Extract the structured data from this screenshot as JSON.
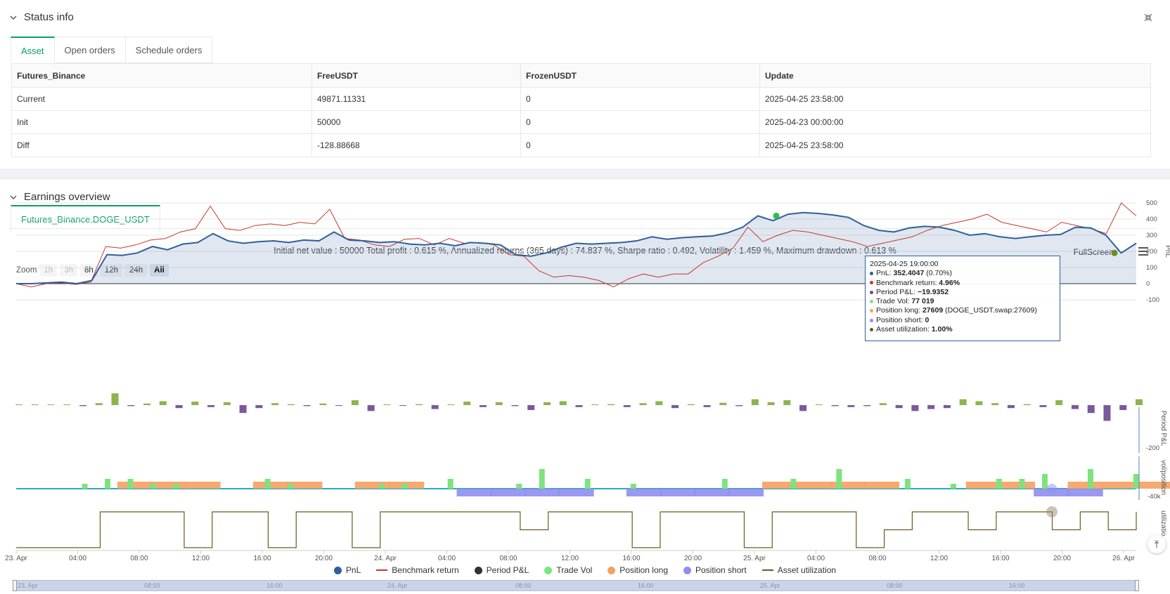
{
  "status": {
    "title": "Status info",
    "tabs": [
      "Asset",
      "Open orders",
      "Schedule orders"
    ],
    "table": {
      "headers": [
        "Futures_Binance",
        "FreeUSDT",
        "FrozenUSDT",
        "Update"
      ],
      "rows": [
        [
          "Current",
          "49871.11331",
          "0",
          "2025-04-25 23:58:00"
        ],
        [
          "Init",
          "50000",
          "0",
          "2025-04-23 00:00:00"
        ],
        [
          "Diff",
          "-128.88668",
          "0",
          "2025-04-25 23:58:00"
        ]
      ]
    }
  },
  "earnings": {
    "title": "Earnings overview",
    "tab": "Futures_Binance.DOGE_USDT",
    "summary": "Initial net value : 50000 Total profit : 0.615 %, Annualized returns (365 days) : 74.837 %, Sharpe ratio : 0.492, Volatility : 1.459 %, Maximum drawdown : 0.613 %",
    "fullscreen": "FullScreen",
    "zoom": {
      "label": "Zoom",
      "buttons": [
        "1h",
        "3h",
        "8h",
        "12h",
        "24h",
        "All"
      ]
    },
    "tooltip": {
      "time": "2025-04-25 19:00:00",
      "pnl_label": "PnL:",
      "pnl_value": "352.4047",
      "pnl_extra": "(0.70%)",
      "bench_label": "Benchmark return:",
      "bench_value": "4.96%",
      "period_label": "Period P&L:",
      "period_value": "−19.9352",
      "vol_label": "Trade Vol:",
      "vol_value": "77 019",
      "long_label": "Position long:",
      "long_value": "27609",
      "long_extra": "(DOGE_USDT.swap:27609)",
      "short_label": "Position short:",
      "short_value": "0",
      "util_label": "Asset utilization:",
      "util_value": "1.00%"
    },
    "legend": [
      "PnL",
      "Benchmark return",
      "Period P&L",
      "Trade Vol",
      "Position long",
      "Position short",
      "Asset utilization"
    ],
    "navigator_labels": [
      "23. Apr",
      "08:00",
      "16:00",
      "24. Apr",
      "08:00",
      "16:00",
      "25. Apr",
      "08:00",
      "16:00"
    ]
  },
  "chart_data": {
    "type": "line",
    "x_ticks": [
      "23. Apr",
      "04:00",
      "08:00",
      "12:00",
      "16:00",
      "20:00",
      "24. Apr",
      "04:00",
      "08:00",
      "12:00",
      "16:00",
      "20:00",
      "25. Apr",
      "04:00",
      "08:00",
      "12:00",
      "16:00",
      "20:00",
      "26. Apr"
    ],
    "pnl_axis": {
      "label": "PnL",
      "ticks": [
        500,
        400,
        300,
        200,
        100,
        0,
        -100
      ]
    },
    "period_axis": {
      "label": "Period P&L",
      "ticks": [
        -200
      ]
    },
    "vol_axis": {
      "label": "vol/position",
      "ticks": [
        "-40k"
      ]
    },
    "util_axis": {
      "label": "utilizatio..",
      "ticks": [
        0
      ]
    },
    "series": [
      {
        "name": "PnL",
        "values": [
          0,
          0,
          5,
          10,
          0,
          20,
          180,
          175,
          190,
          230,
          210,
          245,
          255,
          310,
          265,
          250,
          260,
          265,
          255,
          270,
          265,
          320,
          270,
          265,
          255,
          260,
          245,
          240,
          250,
          235,
          255,
          250,
          240,
          180,
          170,
          190,
          225,
          250,
          245,
          250,
          255,
          265,
          290,
          275,
          285,
          290,
          295,
          315,
          350,
          420,
          390,
          430,
          440,
          435,
          425,
          410,
          360,
          330,
          320,
          345,
          355,
          350,
          330,
          300,
          310,
          290,
          280,
          290,
          300,
          305,
          350,
          345,
          300,
          190,
          250
        ]
      },
      {
        "name": "Benchmark return",
        "values": [
          0,
          -20,
          0,
          5,
          -5,
          10,
          230,
          220,
          240,
          270,
          280,
          320,
          340,
          480,
          340,
          330,
          360,
          370,
          360,
          380,
          370,
          460,
          280,
          270,
          240,
          230,
          275,
          280,
          240,
          280,
          250,
          255,
          240,
          180,
          170,
          80,
          40,
          50,
          40,
          20,
          -20,
          30,
          60,
          40,
          60,
          60,
          130,
          170,
          220,
          350,
          260,
          300,
          330,
          320,
          300,
          280,
          260,
          230,
          250,
          270,
          290,
          330,
          360,
          380,
          400,
          430,
          380,
          360,
          340,
          320,
          380,
          360,
          340,
          310,
          500,
          420
        ]
      },
      {
        "name": "Period P&L",
        "values": [
          0,
          0,
          2,
          0,
          -5,
          10,
          60,
          -5,
          8,
          20,
          -15,
          18,
          -10,
          15,
          -40,
          -15,
          10,
          5,
          -5,
          8,
          -3,
          25,
          -30,
          0,
          -2,
          5,
          -20,
          0,
          18,
          -10,
          15,
          -5,
          -25,
          15,
          20,
          -10,
          0,
          5,
          -10,
          10,
          20,
          -15,
          5,
          -10,
          12,
          -5,
          30,
          15,
          25,
          -30,
          0,
          -5,
          -10,
          -5,
          10,
          -15,
          -30,
          -20,
          -15,
          30,
          20,
          10,
          -15,
          5,
          -10,
          25,
          -20,
          -40,
          -80,
          -25,
          30
        ]
      },
      {
        "name": "Trade Vol",
        "values": [
          0,
          0,
          0,
          5,
          10,
          10,
          5,
          5,
          0,
          0,
          0,
          10,
          5,
          0,
          0,
          0,
          5,
          5,
          0,
          10,
          0,
          0,
          5,
          20,
          0,
          10,
          0,
          5,
          0,
          0,
          0,
          10,
          0,
          0,
          10,
          0,
          20,
          0,
          0,
          10,
          0,
          5,
          0,
          10,
          10,
          15,
          0,
          20,
          0,
          15
        ]
      },
      {
        "name": "Position long",
        "values": [
          0,
          0,
          0,
          27609,
          27609,
          27609,
          0,
          27609,
          27609,
          0,
          27609,
          27609,
          0,
          0,
          0,
          0,
          0,
          0,
          0,
          0,
          0,
          0,
          27609,
          27609,
          27609,
          27609,
          0,
          0,
          27609,
          27609,
          0,
          27609,
          27609,
          27609
        ]
      },
      {
        "name": "Position short",
        "values": [
          0,
          0,
          0,
          0,
          0,
          0,
          0,
          0,
          0,
          0,
          0,
          0,
          0,
          -27609,
          -27609,
          -27609,
          -27609,
          0,
          -27609,
          -27609,
          -27609,
          -27609,
          0,
          0,
          0,
          0,
          0,
          0,
          0,
          0,
          -27609,
          -27609,
          0,
          0
        ]
      },
      {
        "name": "Asset utilization",
        "values": [
          0,
          0,
          0,
          1,
          1,
          1,
          0,
          1,
          1,
          0,
          1,
          1,
          0,
          1,
          1,
          1,
          1,
          1,
          0.5,
          1,
          1,
          1,
          0,
          1,
          1,
          1,
          0,
          1,
          1,
          1,
          0,
          0.5,
          1,
          1,
          0.5,
          1,
          1,
          0.5,
          1,
          0.5,
          1
        ]
      }
    ]
  }
}
